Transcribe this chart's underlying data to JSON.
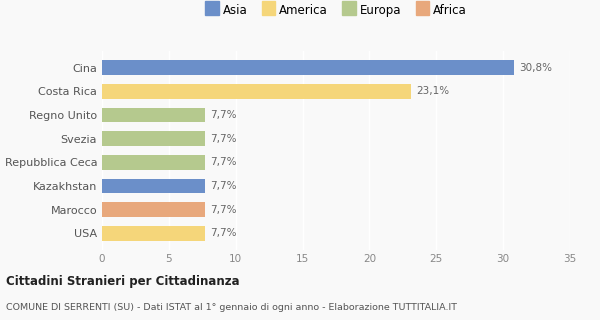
{
  "categories": [
    "USA",
    "Marocco",
    "Kazakhstan",
    "Repubblica Ceca",
    "Svezia",
    "Regno Unito",
    "Costa Rica",
    "Cina"
  ],
  "values": [
    7.7,
    7.7,
    7.7,
    7.7,
    7.7,
    7.7,
    23.1,
    30.8
  ],
  "labels": [
    "7,7%",
    "7,7%",
    "7,7%",
    "7,7%",
    "7,7%",
    "7,7%",
    "23,1%",
    "30,8%"
  ],
  "colors": [
    "#f5d67a",
    "#e8a87c",
    "#6b8fc9",
    "#b5c98e",
    "#b5c98e",
    "#b5c98e",
    "#f5d67a",
    "#6b8fc9"
  ],
  "legend_labels": [
    "Asia",
    "America",
    "Europa",
    "Africa"
  ],
  "legend_colors": [
    "#6b8fc9",
    "#f5d67a",
    "#b5c98e",
    "#e8a87c"
  ],
  "xlim": [
    0,
    35
  ],
  "xticks": [
    0,
    5,
    10,
    15,
    20,
    25,
    30,
    35
  ],
  "title1": "Cittadini Stranieri per Cittadinanza",
  "title2": "COMUNE DI SERRENTI (SU) - Dati ISTAT al 1° gennaio di ogni anno - Elaborazione TUTTITALIA.IT",
  "background_color": "#f9f9f9",
  "bar_height": 0.62
}
